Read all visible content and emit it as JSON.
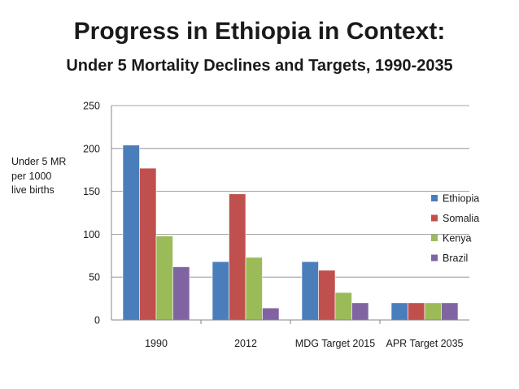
{
  "chart_data": {
    "type": "bar",
    "title": "Progress in Ethiopia in Context:",
    "subtitle": "Under 5 Mortality Declines and Targets, 1990-2035",
    "xlabel": "",
    "ylabel": "Under 5 MR per 1000 live births",
    "ylim": [
      0,
      250
    ],
    "yticks": [
      "0",
      "50",
      "100",
      "150",
      "200",
      "250"
    ],
    "grid": true,
    "legend_position": "right",
    "categories": [
      "1990",
      "2012",
      "MDG Target 2015",
      "APR Target 2035"
    ],
    "series": [
      {
        "name": "Ethiopia",
        "color": "#4a7ebb",
        "values": [
          204,
          68,
          68,
          20
        ]
      },
      {
        "name": "Somalia",
        "color": "#c0504d",
        "values": [
          177,
          147,
          58,
          20
        ]
      },
      {
        "name": "Kenya",
        "color": "#9bbb59",
        "values": [
          98,
          73,
          32,
          20
        ]
      },
      {
        "name": "Brazil",
        "color": "#8064a2",
        "values": [
          62,
          14,
          20,
          20
        ]
      }
    ]
  }
}
